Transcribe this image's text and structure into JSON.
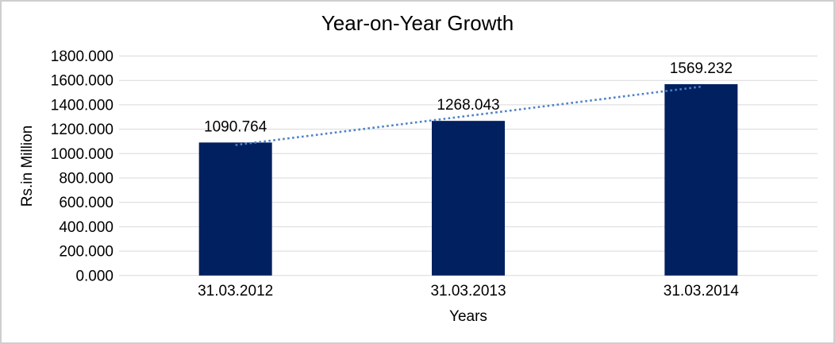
{
  "chart_data": {
    "type": "bar",
    "title": "Year-on-Year Growth",
    "xlabel": "Years",
    "ylabel": "Rs.in Million",
    "categories": [
      "31.03.2012",
      "31.03.2013",
      "31.03.2014"
    ],
    "values": [
      1090.764,
      1268.043,
      1569.232
    ],
    "data_labels": [
      "1090.764",
      "1268.043",
      "1569.232"
    ],
    "ylim": [
      0,
      1800
    ],
    "ytick_step": 200,
    "ytick_labels": [
      "0.000",
      "200.000",
      "400.000",
      "600.000",
      "800.000",
      "1000.000",
      "1200.000",
      "1400.000",
      "1600.000",
      "1800.000"
    ],
    "grid": true,
    "legend": "none",
    "trendline": {
      "type": "linear",
      "style": "dotted"
    },
    "colors": {
      "bar": "#002060",
      "trendline": "#4E82C8",
      "gridline": "#D9D9D9",
      "text": "#000000",
      "frame_border": "#CFCFCF",
      "background": "#FFFFFF"
    }
  }
}
